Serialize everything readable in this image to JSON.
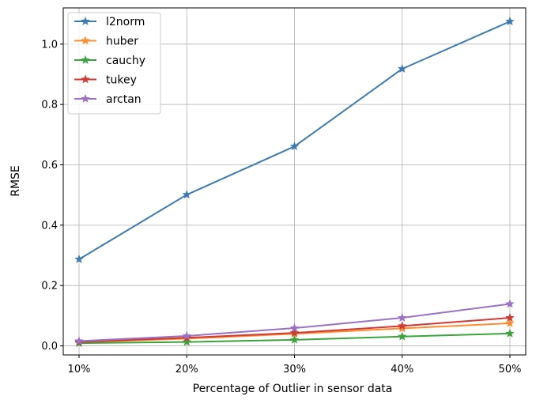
{
  "chart_data": {
    "type": "line",
    "title": "",
    "xlabel": "Percentage of Outlier in sensor data",
    "ylabel": "RMSE",
    "categories": [
      "10%",
      "20%",
      "30%",
      "40%",
      "50%"
    ],
    "ylim": [
      -0.03,
      1.12
    ],
    "yticks": [
      0.0,
      0.2,
      0.4,
      0.6,
      0.8,
      1.0
    ],
    "ytick_labels": [
      "0.0",
      "0.2",
      "0.4",
      "0.6",
      "0.8",
      "1.0"
    ],
    "grid": true,
    "legend_position": "top-left",
    "marker": "star",
    "series": [
      {
        "name": "l2norm",
        "color": "#3f7bb3",
        "values": [
          0.287,
          0.501,
          0.661,
          0.918,
          1.075
        ]
      },
      {
        "name": "huber",
        "color": "#ff8c2e",
        "values": [
          0.012,
          0.024,
          0.04,
          0.058,
          0.075
        ]
      },
      {
        "name": "cauchy",
        "color": "#3da33d",
        "values": [
          0.009,
          0.013,
          0.02,
          0.031,
          0.041
        ]
      },
      {
        "name": "tukey",
        "color": "#d03a35",
        "values": [
          0.013,
          0.027,
          0.043,
          0.066,
          0.093
        ]
      },
      {
        "name": "arctan",
        "color": "#9a72c4",
        "values": [
          0.016,
          0.033,
          0.059,
          0.093,
          0.139
        ]
      }
    ]
  }
}
